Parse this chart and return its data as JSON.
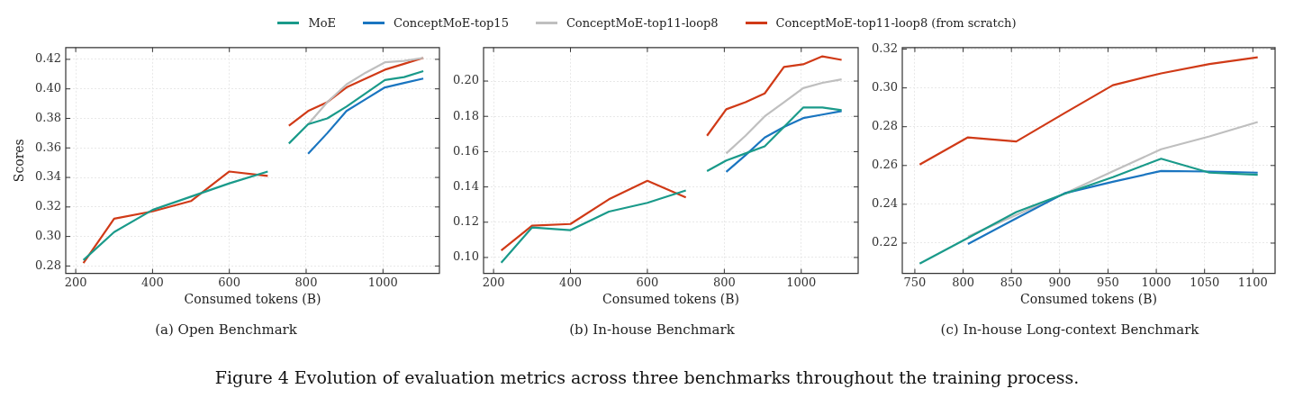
{
  "chart_data": [
    {
      "type": "line",
      "title": "(a) Open Benchmark",
      "xlabel": "Consumed tokens (B)",
      "ylabel": "Scores",
      "legend": "top",
      "grid": true,
      "x": [
        220,
        300,
        400,
        500,
        600,
        700,
        728,
        755,
        805,
        855,
        905,
        955,
        1005,
        1055,
        1105
      ],
      "xlim": [
        174,
        1147
      ],
      "xticks": [
        200,
        400,
        600,
        800,
        1000
      ],
      "ylim": [
        0.275,
        0.428
      ],
      "yticks": [
        0.28,
        {
          "value": 0.3,
          "label": "0.30"
        },
        0.32,
        0.34,
        0.36,
        0.38,
        {
          "value": 0.4,
          "label": "0.40"
        },
        0.42
      ],
      "series": [
        {
          "name": "MoE",
          "color": "#1a9a8a",
          "values": [
            0.284,
            0.303,
            0.318,
            0.327,
            0.336,
            0.344,
            null,
            0.363,
            0.376,
            0.38,
            0.388,
            0.397,
            0.406,
            0.408,
            0.412
          ]
        },
        {
          "name": "ConceptMoE-top15",
          "color": "#1a75c0",
          "values": [
            null,
            null,
            null,
            null,
            null,
            null,
            null,
            null,
            0.356,
            0.37,
            0.385,
            0.393,
            0.401,
            0.404,
            0.407
          ]
        },
        {
          "name": "ConceptMoE-top11-loop8",
          "color": "#bfbfbf",
          "values": [
            null,
            null,
            null,
            null,
            null,
            null,
            null,
            null,
            0.376,
            0.391,
            0.403,
            0.411,
            0.418,
            0.419,
            0.421
          ]
        },
        {
          "name": "ConceptMoE-top11-loop8 (from scratch)",
          "color": "#d03a17",
          "values": [
            0.282,
            0.312,
            0.317,
            0.324,
            0.344,
            0.341,
            null,
            0.375,
            0.385,
            0.391,
            0.401,
            0.407,
            0.413,
            0.417,
            0.421
          ]
        }
      ]
    },
    {
      "type": "line",
      "title": "(b) In-house Benchmark",
      "xlabel": "Consumed tokens (B)",
      "grid": true,
      "annotations": [
        "Figure 4  Evolution of evaluation metrics across three benchmarks throughout the training process."
      ],
      "x": [
        220,
        300,
        400,
        500,
        600,
        700,
        728,
        755,
        805,
        855,
        905,
        955,
        1005,
        1055,
        1105
      ],
      "xlim": [
        174,
        1148
      ],
      "xticks": [
        200,
        400,
        600,
        800,
        1000
      ],
      "ylim": [
        0.091,
        0.219
      ],
      "yticks": [
        {
          "value": 0.1,
          "label": "0.10"
        },
        0.12,
        0.14,
        0.16,
        0.18,
        {
          "value": 0.2,
          "label": "0.20"
        }
      ],
      "series": [
        {
          "color": "#1a9a8a",
          "values": [
            0.097,
            0.117,
            0.1155,
            0.126,
            0.131,
            0.138,
            null,
            0.149,
            0.155,
            0.159,
            0.163,
            0.174,
            0.185,
            0.185,
            0.1835
          ]
        },
        {
          "color": "#1a75c0",
          "values": [
            null,
            null,
            null,
            null,
            null,
            null,
            null,
            null,
            0.1485,
            0.158,
            0.168,
            0.174,
            0.179,
            0.181,
            0.183
          ]
        },
        {
          "color": "#bfbfbf",
          "values": [
            null,
            null,
            null,
            null,
            null,
            null,
            null,
            null,
            0.159,
            0.169,
            0.18,
            0.188,
            0.196,
            0.199,
            0.201
          ]
        },
        {
          "color": "#d03a17",
          "values": [
            0.104,
            0.118,
            0.119,
            0.133,
            0.1435,
            0.134,
            null,
            0.169,
            0.184,
            0.188,
            0.193,
            0.208,
            0.2095,
            0.214,
            0.212
          ]
        }
      ]
    },
    {
      "type": "line",
      "title": "(c) In-house Long-context Benchmark",
      "xlabel": "Consumed tokens (B)",
      "grid": true,
      "x": [
        755,
        805,
        855,
        905,
        955,
        1005,
        1055,
        1105
      ],
      "xlim": [
        737,
        1123
      ],
      "xticks": [
        750,
        800,
        850,
        900,
        950,
        1000,
        1050,
        1100
      ],
      "ylim": [
        0.2044,
        0.3208
      ],
      "yticks": [
        0.22,
        0.24,
        0.26,
        0.28,
        {
          "value": 0.3,
          "label": "0.30"
        },
        0.32
      ],
      "series": [
        {
          "color": "#1a9a8a",
          "values": [
            0.2094,
            0.2227,
            0.236,
            0.2454,
            0.254,
            0.2635,
            0.2563,
            0.2552
          ]
        },
        {
          "color": "#1a75c0",
          "values": [
            null,
            0.2195,
            0.2328,
            0.2457,
            0.2516,
            0.2572,
            0.2569,
            0.2563
          ]
        },
        {
          "color": "#bfbfbf",
          "values": [
            null,
            0.2234,
            0.2345,
            0.2455,
            0.257,
            0.2684,
            0.275,
            0.2824
          ]
        },
        {
          "color": "#d03a17",
          "values": [
            0.2605,
            0.2745,
            0.2724,
            0.287,
            0.3014,
            0.3075,
            0.3123,
            0.3158
          ]
        }
      ]
    }
  ]
}
